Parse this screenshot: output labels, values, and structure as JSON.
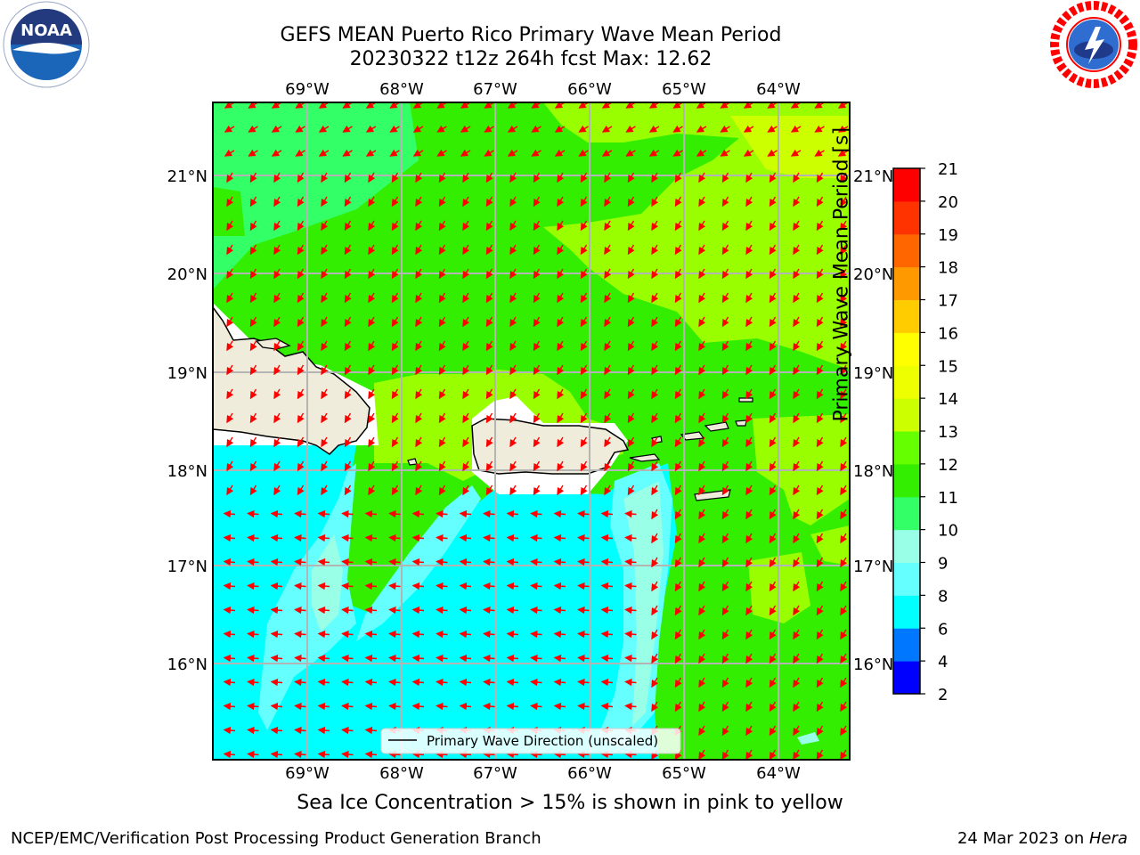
{
  "title": {
    "line1": "GEFS MEAN Puerto Rico Primary Wave Mean Period",
    "line2": "20230322 t12z 264h fcst   Max: 12.62"
  },
  "logos": {
    "left": {
      "name": "noaa-logo",
      "text": "NOAA"
    },
    "right": {
      "name": "nws-logo",
      "text": "NATIONAL WEATHER SERVICE"
    }
  },
  "map": {
    "lon_labels": [
      "69°W",
      "68°W",
      "67°W",
      "66°W",
      "65°W",
      "64°W"
    ],
    "lat_labels": [
      "21°N",
      "20°N",
      "19°N",
      "18°N",
      "17°N",
      "16°N"
    ],
    "extent": {
      "lon_min": -69.85,
      "lon_max": -63.1,
      "lat_min": 15.0,
      "lat_max": 21.75
    },
    "land_color": "#efecdc",
    "ocean_label_colors": {
      "period_6_8": "#00ffff",
      "period_8_9": "#66ffff",
      "period_9_10": "#99ffe6",
      "period_10_11": "#33ff66",
      "period_11_12": "#33ee00",
      "period_12_13": "#99ff00"
    },
    "arrow_color": "#ff0000",
    "legend_label": "Primary Wave Direction (unscaled)"
  },
  "colorbar": {
    "label": "Primary Wave Mean Period [s]",
    "ticks": [
      "2",
      "4",
      "6",
      "8",
      "9",
      "10",
      "11",
      "12",
      "13",
      "14",
      "15",
      "16",
      "17",
      "18",
      "19",
      "20",
      "21"
    ],
    "colors": [
      "#0000ff",
      "#0077ff",
      "#00ffff",
      "#66ffff",
      "#99ffe6",
      "#33ff66",
      "#33ee00",
      "#66ff00",
      "#ccff00",
      "#eeff00",
      "#ffff00",
      "#ffcc00",
      "#ff9900",
      "#ff6600",
      "#ff3300",
      "#ff0000"
    ]
  },
  "notes": {
    "ice": "Sea Ice Concentration > 15% is shown in pink to yellow"
  },
  "footer": {
    "left": "NCEP/EMC/Verification Post Processing Product Generation Branch",
    "right_date": "24 Mar 2023 on ",
    "right_host": "Hera"
  }
}
